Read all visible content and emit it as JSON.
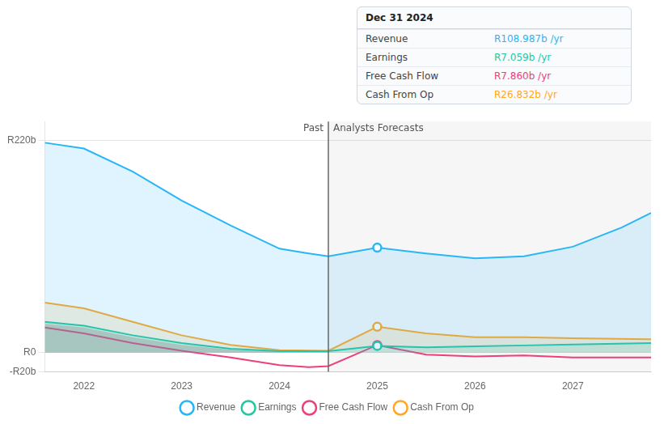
{
  "chart_data": {
    "type": "line",
    "xlim": [
      2021.6,
      2027.8
    ],
    "xticks": [
      2022,
      2023,
      2024,
      2025,
      2026,
      2027
    ],
    "ylim": [
      -20,
      240
    ],
    "yticks": [
      {
        "value": -20,
        "label": "-R20b"
      },
      {
        "value": 0,
        "label": "R0"
      },
      {
        "value": 220,
        "label": "R220b"
      }
    ],
    "grid": true,
    "legend": "bottom",
    "series": [
      {
        "name": "Revenue",
        "type": "area",
        "color": "#29b6f6",
        "x": [
          2021.6,
          2022,
          2022.5,
          2023,
          2023.5,
          2024,
          2024.3,
          2024.5,
          2025,
          2025.5,
          2026,
          2026.5,
          2027,
          2027.5,
          2027.8
        ],
        "values": [
          218,
          212,
          188,
          158,
          132,
          108,
          103,
          100,
          108.987,
          103,
          98,
          100,
          110,
          130,
          145
        ]
      },
      {
        "name": "Earnings",
        "type": "area",
        "color": "#26c6a0",
        "x": [
          2021.6,
          2022,
          2022.5,
          2023,
          2023.5,
          2024,
          2024.5,
          2025,
          2025.5,
          2026,
          2026.5,
          2027,
          2027.8
        ],
        "values": [
          32,
          28,
          18,
          10,
          4,
          1.5,
          1.5,
          7.059,
          5.5,
          6.5,
          7.5,
          8.5,
          10
        ]
      },
      {
        "name": "Free Cash Flow",
        "type": "line",
        "color": "#ec407a",
        "x": [
          2021.6,
          2022,
          2022.5,
          2023,
          2023.5,
          2024,
          2024.3,
          2024.5,
          2025,
          2025.5,
          2026,
          2026.5,
          2027,
          2027.8
        ],
        "values": [
          26,
          20,
          10,
          2,
          -5,
          -13,
          -15,
          -14,
          7.86,
          -2,
          -4,
          -3,
          -5,
          -5
        ]
      },
      {
        "name": "Cash From Op",
        "type": "area",
        "color": "#ffa726",
        "x": [
          2021.6,
          2022,
          2022.5,
          2023,
          2023.5,
          2024,
          2024.5,
          2025,
          2025.5,
          2026,
          2026.5,
          2027,
          2027.8
        ],
        "values": [
          52,
          46,
          32,
          18,
          8,
          2.5,
          2,
          26.832,
          20,
          16,
          16,
          15,
          14
        ]
      },
      {
        "type": "area",
        "color": "#606068",
        "x": [
          2021.6,
          2022,
          2022.5,
          2023,
          2023.5,
          2024,
          2024.5
        ],
        "values": [
          30,
          26,
          16,
          8,
          3,
          1,
          1
        ]
      }
    ],
    "annotations": [
      {
        "type": "vline",
        "x": 2024.5,
        "left_text": "Past",
        "right_text": "Analysts Forecasts"
      },
      {
        "type": "tooltip",
        "x": 2025,
        "title": "Dec 31 2024",
        "items": [
          {
            "label": "Revenue",
            "value": 108.987,
            "value_label": "R108.987b /yr",
            "color": "#29b6f6"
          },
          {
            "label": "Earnings",
            "value": 7.059,
            "value_label": "R7.059b /yr",
            "color": "#26c6a0"
          },
          {
            "label": "Free Cash Flow",
            "value": 7.86,
            "value_label": "R7.860b /yr",
            "color": "#ec407a"
          },
          {
            "label": "Cash From Op",
            "value": 26.832,
            "value_label": "R26.832b /yr",
            "color": "#ffa726"
          }
        ]
      }
    ]
  }
}
